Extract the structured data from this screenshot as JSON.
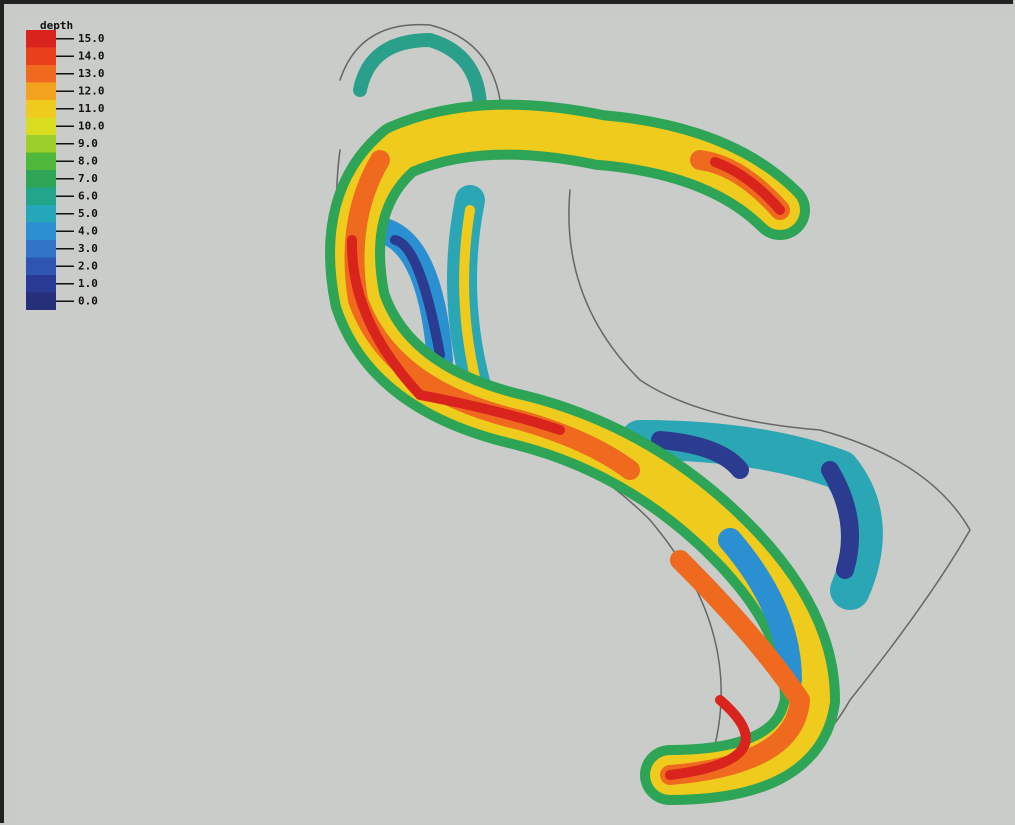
{
  "legend": {
    "title": "depth",
    "labels": [
      "15.0",
      "14.0",
      "13.0",
      "12.0",
      "11.0",
      "10.0",
      "9.0",
      "8.0",
      "7.0",
      "6.0",
      "5.0",
      "4.0",
      "3.0",
      "2.0",
      "1.0",
      "0.0"
    ],
    "colors": [
      "#d8241c",
      "#e8401c",
      "#ef6a1e",
      "#f3a21e",
      "#eecb1c",
      "#d9dc1f",
      "#9ccf2a",
      "#4fb83a",
      "#2ea456",
      "#23a58c",
      "#25a6b9",
      "#2a90d1",
      "#3174c8",
      "#2e55b0",
      "#293a94",
      "#26307a"
    ]
  }
}
